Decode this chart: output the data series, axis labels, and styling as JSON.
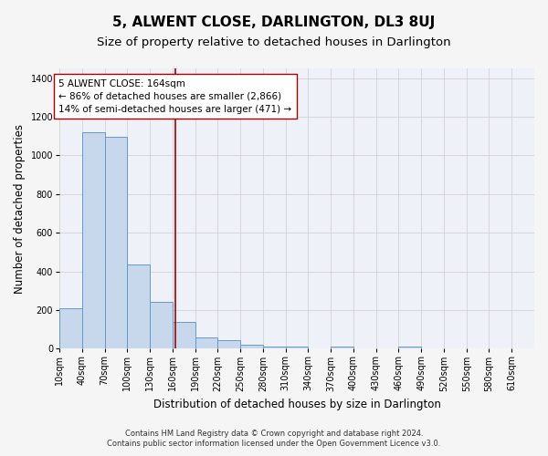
{
  "title": "5, ALWENT CLOSE, DARLINGTON, DL3 8UJ",
  "subtitle": "Size of property relative to detached houses in Darlington",
  "xlabel": "Distribution of detached houses by size in Darlington",
  "ylabel": "Number of detached properties",
  "bar_color": "#c8d8ec",
  "bar_edge_color": "#6699cc",
  "grid_color": "#cccccc",
  "bg_color": "#eef2f8",
  "property_line_x": 164,
  "property_line_color": "#aa0000",
  "annotation_line1": "5 ALWENT CLOSE: 164sqm",
  "annotation_line2": "← 86% of detached houses are smaller (2,866)",
  "annotation_line3": "14% of semi-detached houses are larger (471) →",
  "annotation_box_color": "#ffffff",
  "annotation_border_color": "#aa0000",
  "footnote1": "Contains HM Land Registry data © Crown copyright and database right 2024.",
  "footnote2": "Contains public sector information licensed under the Open Government Licence v3.0.",
  "bin_labels": [
    "10sqm",
    "40sqm",
    "70sqm",
    "100sqm",
    "130sqm",
    "160sqm",
    "190sqm",
    "220sqm",
    "250sqm",
    "280sqm",
    "310sqm",
    "340sqm",
    "370sqm",
    "400sqm",
    "430sqm",
    "460sqm",
    "490sqm",
    "520sqm",
    "550sqm",
    "580sqm",
    "610sqm"
  ],
  "bin_starts": [
    10,
    40,
    70,
    100,
    130,
    160,
    190,
    220,
    250,
    280,
    310,
    340,
    370,
    400,
    430,
    460,
    490,
    520,
    550,
    580,
    610
  ],
  "bin_width": 30,
  "bar_heights": [
    210,
    1120,
    1095,
    435,
    240,
    140,
    60,
    45,
    20,
    10,
    10,
    0,
    10,
    0,
    0,
    10,
    0,
    0,
    0,
    0,
    0
  ],
  "ylim": [
    0,
    1450
  ],
  "yticks": [
    0,
    200,
    400,
    600,
    800,
    1000,
    1200,
    1400
  ],
  "xlim_min": 10,
  "xlim_max": 640,
  "title_fontsize": 11,
  "subtitle_fontsize": 9.5,
  "label_fontsize": 8.5,
  "tick_fontsize": 7,
  "annotation_fontsize": 7.5,
  "footnote_fontsize": 6
}
